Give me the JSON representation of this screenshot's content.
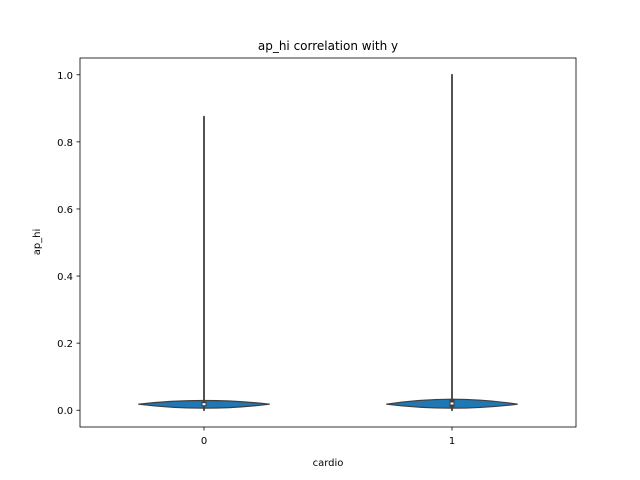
{
  "chart_data": {
    "type": "violin",
    "title": "ap_hi correlation with y",
    "xlabel": "cardio",
    "ylabel": "ap_hi",
    "categories": [
      "0",
      "1"
    ],
    "ylim": [
      -0.05,
      1.05
    ],
    "yticks": [
      0.0,
      0.2,
      0.4,
      0.6,
      0.8,
      1.0
    ],
    "ytick_labels": [
      "0.0",
      "0.2",
      "0.4",
      "0.6",
      "0.8",
      "1.0"
    ],
    "grid": false,
    "fill_color": "#1f77b4",
    "line_color": "#3f3f3f",
    "violins": [
      {
        "category": "0",
        "min": 0.0,
        "max": 0.875,
        "q1": 0.015,
        "median": 0.018,
        "q3": 0.022,
        "density_peak": 0.018
      },
      {
        "category": "1",
        "min": 0.0,
        "max": 1.0,
        "q1": 0.012,
        "median": 0.02,
        "q3": 0.03,
        "density_peak": 0.018
      }
    ]
  }
}
